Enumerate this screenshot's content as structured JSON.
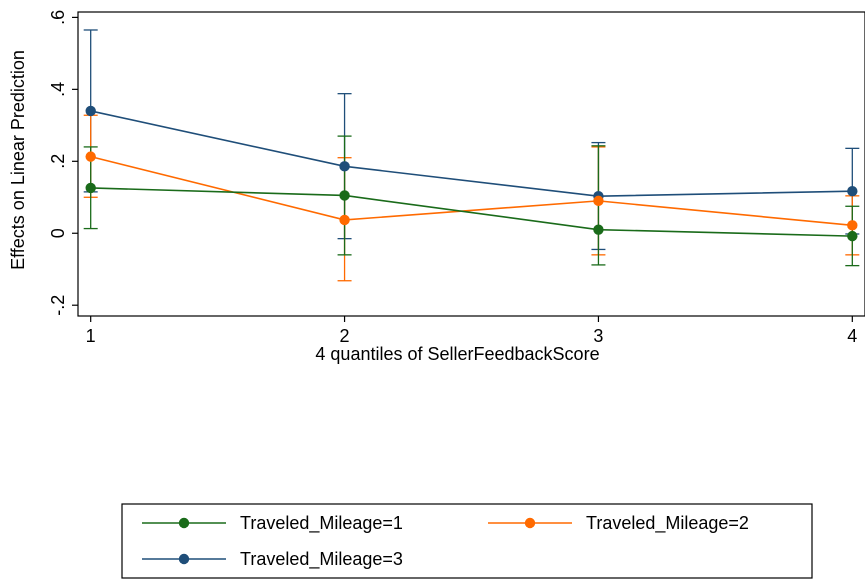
{
  "chart_data": {
    "type": "line",
    "title": "",
    "xlabel": "4 quantiles of SellerFeedbackScore",
    "ylabel": "Effects on Linear Prediction",
    "x": [
      1,
      2,
      3,
      4
    ],
    "x_tick_labels": [
      "1",
      "2",
      "3",
      "4"
    ],
    "ylim": [
      -0.2,
      0.6
    ],
    "y_ticks": [
      -0.2,
      0,
      0.2,
      0.4,
      0.6
    ],
    "y_tick_labels": [
      "-.2",
      "0",
      ".2",
      ".4",
      ".6"
    ],
    "grid": false,
    "legend_position": "bottom",
    "series": [
      {
        "name": "Traveled_Mileage=1",
        "color": "#1a6b1a",
        "values": [
          0.126,
          0.105,
          0.01,
          -0.008
        ],
        "ci_low": [
          0.013,
          -0.06,
          -0.088,
          -0.09
        ],
        "ci_high": [
          0.24,
          0.27,
          0.243,
          0.075
        ]
      },
      {
        "name": "Traveled_Mileage=2",
        "color": "#ff6a00",
        "values": [
          0.213,
          0.037,
          0.09,
          0.022
        ],
        "ci_low": [
          0.1,
          -0.132,
          -0.06,
          -0.06
        ],
        "ci_high": [
          0.328,
          0.21,
          0.24,
          0.104
        ]
      },
      {
        "name": "Traveled_Mileage=3",
        "color": "#1f4e79",
        "values": [
          0.34,
          0.186,
          0.103,
          0.117
        ],
        "ci_low": [
          0.115,
          -0.015,
          -0.045,
          -0.002
        ],
        "ci_high": [
          0.565,
          0.388,
          0.252,
          0.236
        ]
      }
    ]
  }
}
